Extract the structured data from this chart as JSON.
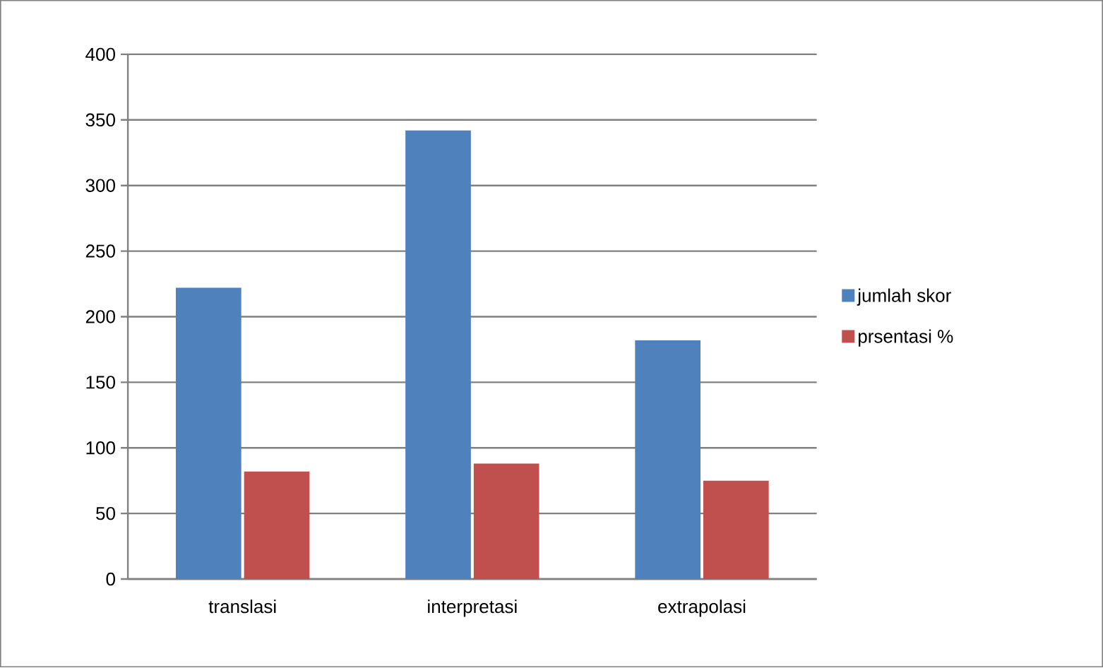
{
  "chart_data": {
    "type": "bar",
    "categories": [
      "translasi",
      "interpretasi",
      "extrapolasi"
    ],
    "series": [
      {
        "name": "jumlah skor",
        "color": "#4f81bd",
        "values": [
          222,
          342,
          182
        ]
      },
      {
        "name": "prsentasi %",
        "color": "#c0504d",
        "values": [
          82,
          88,
          75
        ]
      }
    ],
    "ylim": [
      0,
      400
    ],
    "yticks": [
      0,
      50,
      100,
      150,
      200,
      250,
      300,
      350,
      400
    ],
    "grid": "y",
    "legend": "right"
  }
}
